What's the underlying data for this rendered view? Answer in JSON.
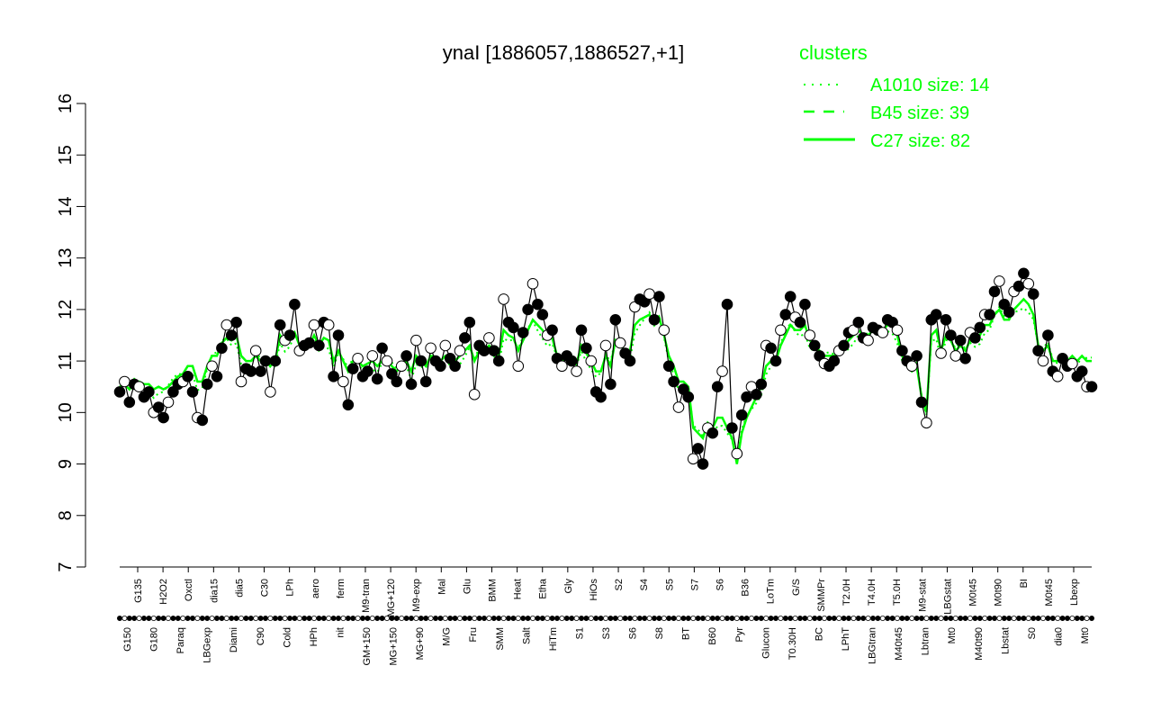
{
  "chart_data": {
    "type": "line",
    "title": "ynaI [1886057,1886527,+1]",
    "xlabel": "",
    "ylabel": "",
    "ylim": [
      7,
      16
    ],
    "yticks": [
      7,
      8,
      9,
      10,
      11,
      12,
      13,
      14,
      15,
      16
    ],
    "grid": false,
    "legend_placement": "top-right",
    "legend": {
      "title": "clusters",
      "color": "#00ff00",
      "entries": [
        {
          "label": "A1010 size: 14",
          "style": "dotted"
        },
        {
          "label": "B45 size: 39",
          "style": "dashed"
        },
        {
          "label": "C27 size: 82",
          "style": "solid"
        }
      ]
    },
    "x_labels_top": [
      "G135",
      "H2O2",
      "Oxctl",
      "dia15",
      "dia5",
      "C30",
      "LPh",
      "aero",
      "ferm",
      "M9-tran",
      "MG+120",
      "M9-exp",
      "Mal",
      "Glu",
      "BMM",
      "Heat",
      "Etha",
      "Gly",
      "HiOs",
      "S2",
      "S4",
      "S5",
      "S7",
      "S6",
      "B36",
      "LoTm",
      "G/S",
      "SMMPr",
      "T2.0H",
      "T4.0H",
      "T5.0H",
      "M9-stat",
      "LBGstat",
      "M0t45",
      "M0t90",
      "BI",
      "M0t45",
      "Lbexp"
    ],
    "x_labels_bottom": [
      "G150",
      "G180",
      "Paraq",
      "LBGexp",
      "Diami",
      "C90",
      "Cold",
      "HPh",
      "nit",
      "GM+150",
      "MG+150",
      "MG+90",
      "M/G",
      "Fru",
      "SMM",
      "Salt",
      "HiTm",
      "S1",
      "S3",
      "S6",
      "S8",
      "BT",
      "B60",
      "Pyr",
      "Glucon",
      "T0.30H",
      "BC",
      "LPhT",
      "LBGtran",
      "M40t45",
      "Lbtran",
      "Mt0",
      "M40t90",
      "Lbstat",
      "S0",
      "dia0",
      "Mt0"
    ],
    "series": [
      {
        "role": "observations",
        "values": [
          10.4,
          10.6,
          10.2,
          10.55,
          10.5,
          10.3,
          10.4,
          10.0,
          10.1,
          9.9,
          10.2,
          10.4,
          10.55,
          10.6,
          10.7,
          10.4,
          9.9,
          9.85,
          10.55,
          10.9,
          10.7,
          11.25,
          11.7,
          11.5,
          11.75,
          10.6,
          10.85,
          10.8,
          11.2,
          10.8,
          11.0,
          10.4,
          11.0,
          11.7,
          11.4,
          11.5,
          12.1,
          11.2,
          11.3,
          11.35,
          11.7,
          11.3,
          11.75,
          11.7,
          10.7,
          11.5,
          10.6,
          10.15,
          10.85,
          11.05,
          10.7,
          10.8,
          11.1,
          10.65,
          11.25,
          11.0,
          10.75,
          10.6,
          10.9,
          11.1,
          10.55,
          11.4,
          11.0,
          10.6,
          11.25,
          11.0,
          10.9,
          11.3,
          11.05,
          10.9,
          11.2,
          11.45,
          11.75,
          10.35,
          11.3,
          11.2,
          11.45,
          11.2,
          11.0,
          12.2,
          11.75,
          11.65,
          10.9,
          11.55,
          12.0,
          12.5,
          12.1,
          11.9,
          11.5,
          11.6,
          11.05,
          10.9,
          11.1,
          11.0,
          10.8,
          11.6,
          11.25,
          11.0,
          10.4,
          10.3,
          11.3,
          10.55,
          11.8,
          11.35,
          11.15,
          11.0,
          12.05,
          12.2,
          12.15,
          12.3,
          11.8,
          12.25,
          11.6,
          10.9,
          10.6,
          10.1,
          10.45,
          10.3,
          9.1,
          9.3,
          9.0,
          9.7,
          9.6,
          10.5,
          10.8,
          12.1,
          9.7,
          9.2,
          9.95,
          10.3,
          10.5,
          10.35,
          10.55,
          11.3,
          11.25,
          11.0,
          11.6,
          11.9,
          12.25,
          11.85,
          11.75,
          12.1,
          11.5,
          11.3,
          11.1,
          10.95,
          10.9,
          11.0,
          11.2,
          11.3,
          11.55,
          11.6,
          11.75,
          11.45,
          11.4,
          11.65,
          11.6,
          11.55,
          11.8,
          11.75,
          11.6,
          11.2,
          11.0,
          10.9,
          11.1,
          10.2,
          9.8,
          11.8,
          11.9,
          11.15,
          11.8,
          11.5,
          11.1,
          11.4,
          11.05,
          11.55,
          11.45,
          11.65,
          11.9,
          11.9,
          12.35,
          12.55,
          12.1,
          11.95,
          12.35,
          12.45,
          12.7,
          12.5,
          12.3,
          11.2,
          11.0,
          11.5,
          10.8,
          10.7,
          11.05,
          10.9,
          10.95,
          10.7,
          10.8,
          10.5,
          10.5
        ]
      },
      {
        "role": "C27 cluster mean",
        "values": [
          10.5,
          10.55,
          10.45,
          10.6,
          10.6,
          10.55,
          10.55,
          10.45,
          10.5,
          10.45,
          10.5,
          10.6,
          10.7,
          10.75,
          10.9,
          10.9,
          10.6,
          10.6,
          10.9,
          11.1,
          11.1,
          11.35,
          11.45,
          11.4,
          11.5,
          11.1,
          11.0,
          11.0,
          11.1,
          11.0,
          11.0,
          10.9,
          11.0,
          11.5,
          11.35,
          11.4,
          11.55,
          11.3,
          11.3,
          11.3,
          11.5,
          11.3,
          11.45,
          11.4,
          11.0,
          11.2,
          11.0,
          10.8,
          11.0,
          11.0,
          10.9,
          10.95,
          11.0,
          10.9,
          11.0,
          11.0,
          10.9,
          10.8,
          10.9,
          11.0,
          10.8,
          11.1,
          11.0,
          10.9,
          11.1,
          11.0,
          11.0,
          11.1,
          11.0,
          11.0,
          11.1,
          11.2,
          11.3,
          11.0,
          11.2,
          11.2,
          11.3,
          11.2,
          11.1,
          11.6,
          11.5,
          11.45,
          11.2,
          11.4,
          11.6,
          11.8,
          11.7,
          11.6,
          11.45,
          11.45,
          11.1,
          11.0,
          11.05,
          11.0,
          10.95,
          11.3,
          11.15,
          11.0,
          10.8,
          10.8,
          11.1,
          10.9,
          11.4,
          11.3,
          11.2,
          11.2,
          11.7,
          11.8,
          11.85,
          11.9,
          11.7,
          11.85,
          11.5,
          11.1,
          10.9,
          10.6,
          10.6,
          10.5,
          9.7,
          9.6,
          9.5,
          9.8,
          9.7,
          9.9,
          9.9,
          9.7,
          9.5,
          9.0,
          9.6,
          9.9,
          10.1,
          10.3,
          10.5,
          10.9,
          11.0,
          11.0,
          11.3,
          11.5,
          11.7,
          11.6,
          11.6,
          11.7,
          11.4,
          11.3,
          11.2,
          11.1,
          11.1,
          11.1,
          11.2,
          11.3,
          11.4,
          11.5,
          11.6,
          11.5,
          11.5,
          11.6,
          11.6,
          11.6,
          11.7,
          11.7,
          11.5,
          11.1,
          10.9,
          10.8,
          10.9,
          10.3,
          10.0,
          11.5,
          11.6,
          11.2,
          11.5,
          11.4,
          11.2,
          11.3,
          11.2,
          11.4,
          11.4,
          11.5,
          11.7,
          11.7,
          11.9,
          12.0,
          11.8,
          11.8,
          12.0,
          12.1,
          12.2,
          12.1,
          11.9,
          11.3,
          11.2,
          11.3,
          11.0,
          11.0,
          11.1,
          11.0,
          11.1,
          11.0,
          11.1,
          11.0,
          11.0
        ]
      }
    ]
  }
}
